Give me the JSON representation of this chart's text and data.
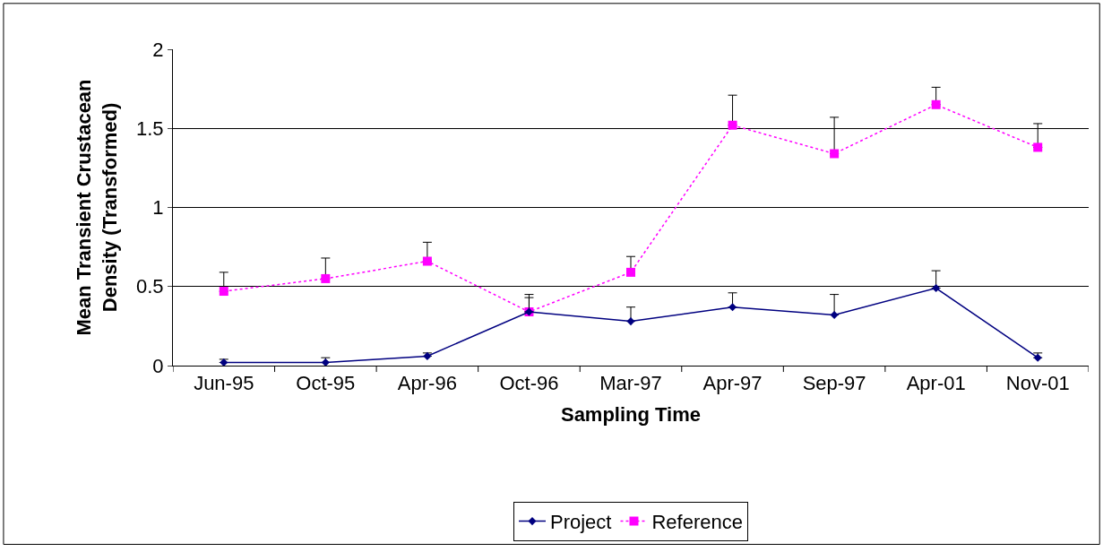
{
  "chart_data": {
    "type": "line",
    "xlabel": "Sampling Time",
    "ylabel": "Mean Transient Crustacean Density (Transformed)",
    "categories": [
      "Jun-95",
      "Oct-95",
      "Apr-96",
      "Oct-96",
      "Mar-97",
      "Apr-97",
      "Sep-97",
      "Apr-01",
      "Nov-01"
    ],
    "series": [
      {
        "name": "Project",
        "color": "#000080",
        "marker": "diamond",
        "line_style": "solid",
        "values": [
          0.02,
          0.02,
          0.06,
          0.34,
          0.28,
          0.37,
          0.32,
          0.49,
          0.05
        ],
        "errors": [
          [
            0.02,
            0.04
          ],
          [
            0.02,
            0.05
          ],
          [
            0.06,
            0.08
          ],
          [
            0.34,
            0.43
          ],
          [
            0.28,
            0.37
          ],
          [
            0.37,
            0.46
          ],
          [
            0.32,
            0.45
          ],
          [
            0.49,
            0.6
          ],
          [
            0.05,
            0.08
          ]
        ]
      },
      {
        "name": "Reference",
        "color": "#ff00ff",
        "marker": "square",
        "line_style": "dotted",
        "values": [
          0.47,
          0.55,
          0.66,
          0.34,
          0.59,
          1.52,
          1.34,
          1.65,
          1.38
        ],
        "errors": [
          [
            0.47,
            0.59
          ],
          [
            0.55,
            0.68
          ],
          [
            0.66,
            0.78
          ],
          [
            0.34,
            0.45
          ],
          [
            0.59,
            0.69
          ],
          [
            1.52,
            1.71
          ],
          [
            1.34,
            1.57
          ],
          [
            1.65,
            1.76
          ],
          [
            1.38,
            1.53
          ]
        ]
      }
    ],
    "ylim": [
      0,
      2
    ],
    "yticks": [
      0,
      0.5,
      1,
      1.5,
      2
    ],
    "grid": "y",
    "legend": "bottom"
  }
}
